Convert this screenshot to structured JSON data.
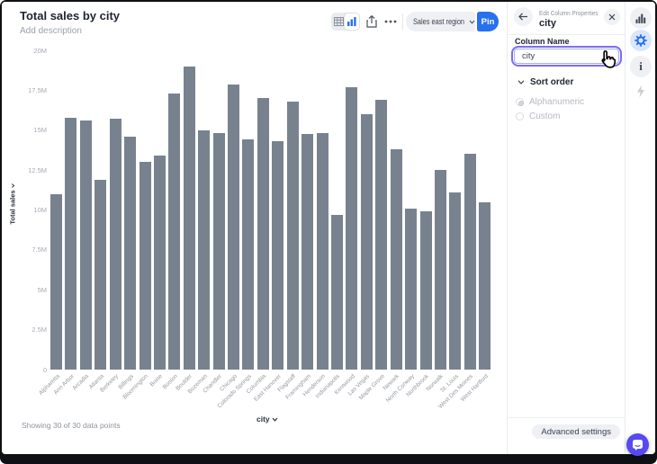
{
  "main": {
    "title": "Total sales by city",
    "description_placeholder": "Add description",
    "footer_note": "Showing 30 of 30 data points",
    "x_axis_button": "city",
    "y_axis_button": "Total sales"
  },
  "toolbar": {
    "region_selector_label": "Sales east region",
    "pin_label": "Pin"
  },
  "panel": {
    "header_kicker": "Edit Column Properties",
    "header_title": "city",
    "column_name_label": "Column Name",
    "column_name_value": "city",
    "sort_order_label": "Sort order",
    "sort_options": [
      {
        "label": "Alphanumeric",
        "selected": true
      },
      {
        "label": "Custom",
        "selected": false
      }
    ],
    "advanced_settings_label": "Advanced settings"
  },
  "colors": {
    "bar": "#78828f",
    "accent_blue": "#2770ef",
    "focus_ring": "#7e6cf3",
    "chat_button": "#564af0"
  },
  "chart_data": {
    "type": "bar",
    "title": "Total sales by city",
    "xlabel": "city",
    "ylabel": "Total sales",
    "unit": "millions",
    "ylim": [
      0,
      20
    ],
    "ytick_values": [
      0,
      2.5,
      5,
      7.5,
      10,
      12.5,
      15,
      17.5,
      20
    ],
    "ytick_labels": [
      "0",
      "2.5M",
      "5M",
      "7.5M",
      "10M",
      "12.5M",
      "15M",
      "17.5M",
      "20M"
    ],
    "categories": [
      "Alpharetta",
      "Ann Arbor",
      "Arcadia",
      "Atlanta",
      "Berkeley",
      "Billings",
      "Bloomington",
      "Boise",
      "Boston",
      "Boulder",
      "Bozeman",
      "Chandler",
      "Chicago",
      "Colorado Springs",
      "Columbia",
      "East Hanover",
      "Flagstaff",
      "Framingham",
      "Henderson",
      "Indianapolis",
      "Kentwood",
      "Las Vegas",
      "Maple Grove",
      "Newark",
      "North Conway",
      "Northbrook",
      "Norwalk",
      "St. Louis",
      "West Des Moines",
      "West Hartford"
    ],
    "values": [
      11.0,
      15.8,
      15.6,
      11.9,
      15.7,
      14.6,
      13.0,
      13.4,
      17.3,
      19.0,
      15.0,
      14.8,
      17.85,
      14.4,
      17.0,
      14.3,
      16.8,
      14.75,
      14.8,
      9.7,
      17.7,
      16.0,
      16.9,
      13.8,
      10.1,
      9.9,
      12.5,
      11.1,
      13.5,
      10.5
    ],
    "grid": false,
    "legend": false
  }
}
